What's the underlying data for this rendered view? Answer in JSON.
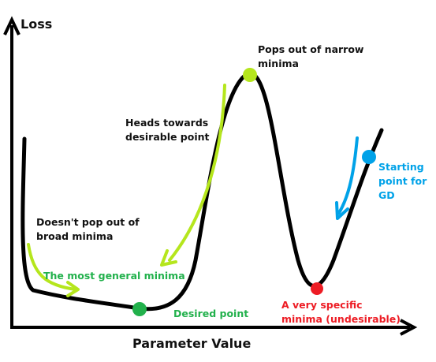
{
  "axes": {
    "y_label": "Loss",
    "x_label": "Parameter Value"
  },
  "annotations": {
    "pops_out": "Pops out of narrow\nminima",
    "heads_towards": "Heads towards\ndesirable point",
    "doesnt_pop": "Doesn't pop out of\nbroad minima",
    "most_general": "The most general minima",
    "desired_point": "Desired point",
    "specific_minima": "A very specific\nminima (undesirable)",
    "starting_point": "Starting\npoint for\nGD"
  },
  "colors": {
    "curve": "#000000",
    "light_green": "#b5e61d",
    "green": "#22b14c",
    "red": "#ed1c24",
    "blue": "#00a2e8"
  }
}
